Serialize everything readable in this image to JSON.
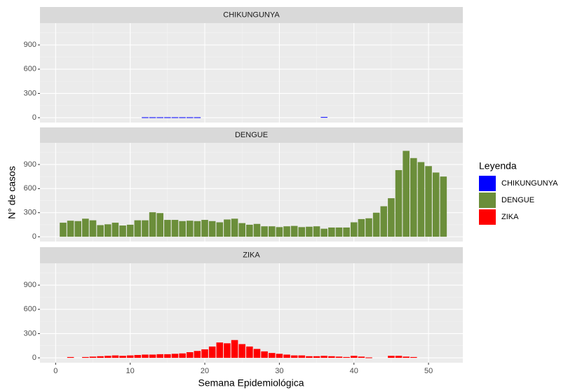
{
  "chart_data": [
    {
      "type": "bar",
      "title": "CHIKUNGUNYA",
      "x": [
        1,
        2,
        3,
        4,
        5,
        6,
        7,
        8,
        9,
        10,
        11,
        12,
        13,
        14,
        15,
        16,
        17,
        18,
        19,
        20,
        21,
        22,
        23,
        24,
        25,
        26,
        27,
        28,
        29,
        30,
        31,
        32,
        33,
        34,
        35,
        36,
        37,
        38,
        39,
        40,
        41,
        42,
        43,
        44,
        45,
        46,
        47,
        48,
        49,
        50,
        51,
        52
      ],
      "series": [
        {
          "name": "CHIKUNGUNYA",
          "color": "#0000ff",
          "values": [
            0,
            0,
            0,
            0,
            0,
            0,
            0,
            0,
            0,
            0,
            0,
            5,
            5,
            5,
            5,
            5,
            5,
            5,
            5,
            0,
            0,
            0,
            0,
            0,
            0,
            0,
            0,
            0,
            0,
            0,
            0,
            0,
            0,
            0,
            0,
            8,
            0,
            0,
            0,
            0,
            0,
            0,
            0,
            0,
            0,
            0,
            0,
            0,
            0,
            0,
            0,
            0
          ]
        }
      ],
      "ylim": [
        -60,
        1170
      ],
      "yticks": [
        0,
        300,
        600,
        900
      ]
    },
    {
      "type": "bar",
      "title": "DENGUE",
      "x": [
        1,
        2,
        3,
        4,
        5,
        6,
        7,
        8,
        9,
        10,
        11,
        12,
        13,
        14,
        15,
        16,
        17,
        18,
        19,
        20,
        21,
        22,
        23,
        24,
        25,
        26,
        27,
        28,
        29,
        30,
        31,
        32,
        33,
        34,
        35,
        36,
        37,
        38,
        39,
        40,
        41,
        42,
        43,
        44,
        45,
        46,
        47,
        48,
        49,
        50,
        51,
        52
      ],
      "series": [
        {
          "name": "DENGUE",
          "color": "#6b8e3a",
          "values": [
            175,
            200,
            195,
            225,
            205,
            145,
            155,
            175,
            140,
            150,
            205,
            205,
            305,
            295,
            210,
            210,
            195,
            200,
            195,
            210,
            195,
            180,
            215,
            225,
            170,
            150,
            160,
            130,
            130,
            120,
            130,
            135,
            120,
            125,
            130,
            100,
            115,
            115,
            115,
            180,
            220,
            230,
            300,
            380,
            480,
            830,
            1070,
            980,
            930,
            880,
            800,
            750
          ]
        }
      ],
      "ylim": [
        -60,
        1170
      ],
      "yticks": [
        0,
        300,
        600,
        900
      ]
    },
    {
      "type": "bar",
      "title": "ZIKA",
      "x": [
        1,
        2,
        3,
        4,
        5,
        6,
        7,
        8,
        9,
        10,
        11,
        12,
        13,
        14,
        15,
        16,
        17,
        18,
        19,
        20,
        21,
        22,
        23,
        24,
        25,
        26,
        27,
        28,
        29,
        30,
        31,
        32,
        33,
        34,
        35,
        36,
        37,
        38,
        39,
        40,
        41,
        42,
        43,
        44,
        45,
        46,
        47,
        48,
        49,
        50,
        51,
        52
      ],
      "series": [
        {
          "name": "ZIKA",
          "color": "#ff0000",
          "values": [
            0,
            10,
            0,
            10,
            15,
            20,
            25,
            30,
            25,
            30,
            35,
            40,
            40,
            45,
            45,
            50,
            55,
            70,
            85,
            105,
            140,
            190,
            180,
            220,
            170,
            140,
            110,
            80,
            60,
            50,
            40,
            30,
            30,
            20,
            20,
            25,
            20,
            15,
            10,
            25,
            15,
            5,
            0,
            0,
            25,
            25,
            15,
            10,
            0,
            0,
            0,
            0
          ]
        }
      ],
      "ylim": [
        -60,
        1170
      ],
      "yticks": [
        0,
        300,
        600,
        900
      ]
    }
  ],
  "x_axis": {
    "label": "Semana Epidemiológica",
    "xlim": [
      -2.1,
      54.6
    ],
    "xticks": [
      0,
      10,
      20,
      30,
      40,
      50
    ]
  },
  "y_label": "N° de casos",
  "legend_title": "Leyenda"
}
